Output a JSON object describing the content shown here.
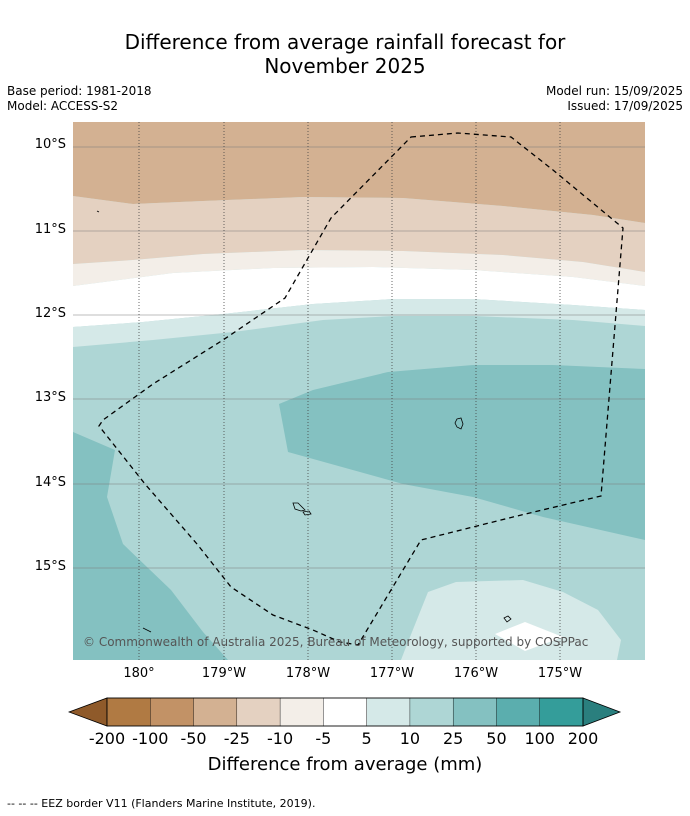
{
  "title_line1": "Difference from average rainfall forecast for",
  "title_line2": "November 2025",
  "meta": {
    "base_period": "Base period: 1981-2018",
    "model": "Model: ACCESS-S2",
    "model_run": "Model run: 15/09/2025",
    "issued": "Issued: 17/09/2025"
  },
  "map": {
    "lat_labels": [
      "10°S",
      "11°S",
      "12°S",
      "13°S",
      "14°S",
      "15°S"
    ],
    "lon_labels": [
      "180°",
      "179°W",
      "178°W",
      "177°W",
      "176°W",
      "175°W"
    ],
    "copyright": "© Commonwealth of Australia 2025, Bureau of Meteorology, supported by COSPPac",
    "eez_line_color": "#000000"
  },
  "legend": {
    "ticks": [
      "-200",
      "-100",
      "-50",
      "-25",
      "-10",
      "-5",
      "5",
      "10",
      "25",
      "50",
      "100",
      "200"
    ],
    "colors": [
      "#8f5a2a",
      "#b07a43",
      "#c29266",
      "#d3b192",
      "#e4d1c1",
      "#f3eee8",
      "#ffffff",
      "#d5e9e8",
      "#aed6d5",
      "#84c1c1",
      "#5baeae",
      "#349d9a",
      "#2a7f7e"
    ],
    "label": "Difference from average (mm)"
  },
  "footer": "--  --  -- EEZ border V11 (Flanders Marine Institute, 2019)."
}
